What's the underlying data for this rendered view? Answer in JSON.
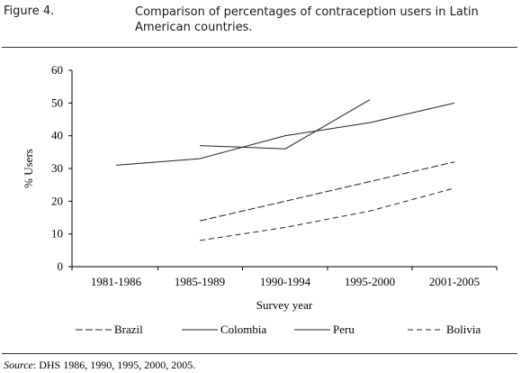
{
  "figure": {
    "label": "Figure 4.",
    "title": "Comparison of percentages of contraception users in Latin American countries."
  },
  "source": {
    "prefix": "Source",
    "text": ": DHS 1986, 1990, 1995, 2000, 2005."
  },
  "chart_data": {
    "type": "line",
    "categories": [
      "1981-1986",
      "1985-1989",
      "1990-1994",
      "1995-2000",
      "2001-2005"
    ],
    "xlabel": "Survey year",
    "ylabel": "% Users",
    "ylim": [
      0,
      60
    ],
    "yticks": [
      0,
      10,
      20,
      30,
      40,
      50,
      60
    ],
    "grid": false,
    "legend_position": "bottom",
    "series": [
      {
        "name": "Brazil",
        "values": [
          null,
          14,
          20,
          26,
          32
        ],
        "dash": "8,3"
      },
      {
        "name": "Colombia",
        "values": [
          31,
          33,
          40,
          44,
          50
        ],
        "dash": ""
      },
      {
        "name": "Peru",
        "values": [
          null,
          37,
          36,
          51,
          null
        ],
        "dash": ""
      },
      {
        "name": "Bolivia",
        "values": [
          null,
          8,
          12,
          17,
          24
        ],
        "dash": "6,4"
      }
    ]
  }
}
